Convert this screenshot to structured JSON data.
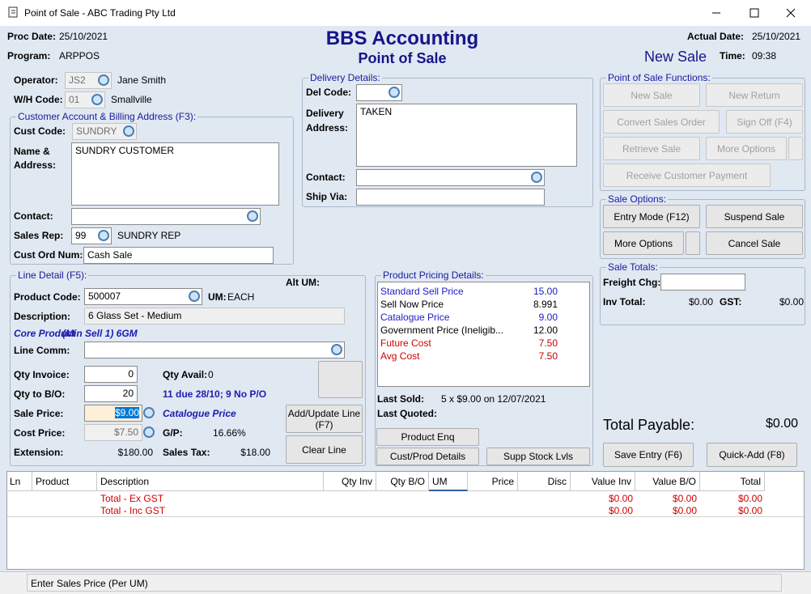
{
  "window": {
    "title": "Point of Sale - ABC Trading Pty Ltd"
  },
  "header": {
    "proc_date_label": "Proc Date:",
    "proc_date": "25/10/2021",
    "program_label": "Program:",
    "program": "ARPPOS",
    "company": "BBS Accounting",
    "module": "Point of Sale",
    "actual_date_label": "Actual Date:",
    "actual_date": "25/10/2021",
    "mode": "New Sale",
    "time_label": "Time:",
    "time": "09:38"
  },
  "operator": {
    "operator_label": "Operator:",
    "operator_code": "JS2",
    "operator_name": "Jane Smith",
    "wh_label": "W/H Code:",
    "wh_code": "01",
    "wh_name": "Smallville"
  },
  "customer": {
    "title": "Customer Account & Billing Address (F3):",
    "cust_code_label": "Cust Code:",
    "cust_code": "SUNDRY",
    "name_label": "Name & Address:",
    "name_address": "SUNDRY CUSTOMER",
    "contact_label": "Contact:",
    "sales_rep_label": "Sales Rep:",
    "sales_rep_code": "99",
    "sales_rep_name": "SUNDRY REP",
    "cust_ord_label": "Cust Ord Num:",
    "cust_ord": "Cash Sale"
  },
  "delivery": {
    "title": "Delivery Details:",
    "del_code_label": "Del Code:",
    "address_label": "Delivery Address:",
    "address": "TAKEN",
    "contact_label": "Contact:",
    "ship_via_label": "Ship Via:"
  },
  "functions": {
    "title": "Point of Sale Functions:",
    "new_sale": "New Sale",
    "new_return": "New Return",
    "convert_order": "Convert Sales Order",
    "sign_off": "Sign Off (F4)",
    "retrieve_sale": "Retrieve Sale",
    "more_options": "More Options",
    "receive_payment": "Receive Customer Payment"
  },
  "sale_options": {
    "title": "Sale Options:",
    "entry_mode": "Entry Mode (F12)",
    "suspend_sale": "Suspend Sale",
    "more_options": "More Options",
    "cancel_sale": "Cancel Sale"
  },
  "sale_totals": {
    "title": "Sale Totals:",
    "freight_label": "Freight Chg:",
    "inv_total_label": "Inv Total:",
    "inv_total": "$0.00",
    "gst_label": "GST:",
    "gst": "$0.00",
    "total_payable_label": "Total Payable:",
    "total_payable": "$0.00",
    "save_entry": "Save Entry (F6)",
    "quick_add": "Quick-Add (F8)"
  },
  "line_detail": {
    "title": "Line Detail (F5):",
    "alt_um_label": "Alt UM:",
    "product_code_label": "Product Code:",
    "product_code": "500007",
    "um_label": "UM:",
    "um": "EACH",
    "description_label": "Description:",
    "description": "6 Glass Set - Medium",
    "core_product": "Core Product",
    "min_sell": "(Min Sell 1) 6GM",
    "line_comm_label": "Line Comm:",
    "qty_invoice_label": "Qty Invoice:",
    "qty_invoice": "0",
    "qty_avail_label": "Qty Avail:",
    "qty_avail": "0",
    "qty_bo_label": "Qty to B/O:",
    "qty_bo": "20",
    "bo_note": "11 due 28/10; 9 No P/O",
    "sale_price_label": "Sale Price:",
    "sale_price": "$9.00",
    "price_source": "Catalogue Price",
    "cost_price_label": "Cost Price:",
    "cost_price": "$7.50",
    "gp_label": "G/P:",
    "gp": "16.66%",
    "extension_label": "Extension:",
    "extension": "$180.00",
    "sales_tax_label": "Sales Tax:",
    "sales_tax": "$18.00",
    "add_update": "Add/Update Line (F7)",
    "clear_line": "Clear Line"
  },
  "pricing": {
    "title": "Product Pricing Details:",
    "rows": [
      {
        "label": "Standard Sell Price",
        "value": "15.00",
        "color": "#1c1cc8"
      },
      {
        "label": "Sell Now Price",
        "value": "8.991",
        "color": "#000000"
      },
      {
        "label": "Catalogue Price",
        "value": "9.00",
        "color": "#1c1cc8"
      },
      {
        "label": "Government Price (Ineligib...",
        "value": "12.00",
        "color": "#000000"
      },
      {
        "label": "Future Cost",
        "value": "7.50",
        "color": "#d00000"
      },
      {
        "label": "Avg Cost",
        "value": "7.50",
        "color": "#d00000"
      }
    ],
    "last_sold_label": "Last Sold:",
    "last_sold": "5 x $9.00 on 12/07/2021",
    "last_quoted_label": "Last Quoted:",
    "product_enq": "Product Enq",
    "cust_prod": "Cust/Prod Details",
    "supp_stock": "Supp Stock Lvls"
  },
  "grid": {
    "columns": [
      "Ln",
      "Product",
      "Description",
      "Qty Inv",
      "Qty B/O",
      "UM",
      "Price",
      "Disc",
      "Value Inv",
      "Value B/O",
      "Total"
    ],
    "rows": [
      {
        "description": "Total - Ex GST",
        "value_inv": "$0.00",
        "value_bo": "$0.00",
        "total": "$0.00"
      },
      {
        "description": "Total - Inc GST",
        "value_inv": "$0.00",
        "value_bo": "$0.00",
        "total": "$0.00"
      }
    ]
  },
  "status": {
    "message": "Enter Sales Price (Per UM)"
  }
}
